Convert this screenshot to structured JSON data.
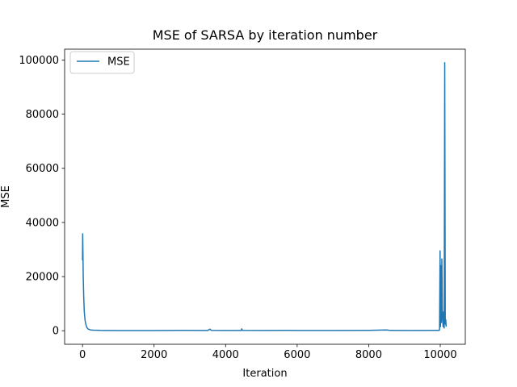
{
  "chart_data": {
    "type": "line",
    "title": "MSE of SARSA by iteration number",
    "xlabel": "Iteration",
    "ylabel": "MSE",
    "xlim": [
      -500,
      10700
    ],
    "ylim": [
      -5000,
      104000
    ],
    "xticks": [
      0,
      2000,
      4000,
      6000,
      8000,
      10000
    ],
    "yticks": [
      0,
      20000,
      40000,
      60000,
      80000,
      100000
    ],
    "xtick_labels": [
      "0",
      "2000",
      "4000",
      "6000",
      "8000",
      "10000"
    ],
    "ytick_labels": [
      "0",
      "20000",
      "40000",
      "60000",
      "80000",
      "100000"
    ],
    "grid": false,
    "legend_position": "top-left",
    "series": [
      {
        "name": "MSE",
        "color": "#1f77b4",
        "points": [
          [
            0,
            26000
          ],
          [
            5,
            35800
          ],
          [
            12,
            29000
          ],
          [
            20,
            20000
          ],
          [
            35,
            12000
          ],
          [
            50,
            7000
          ],
          [
            70,
            4000
          ],
          [
            90,
            2500
          ],
          [
            120,
            1200
          ],
          [
            160,
            600
          ],
          [
            220,
            300
          ],
          [
            300,
            200
          ],
          [
            500,
            120
          ],
          [
            1000,
            80
          ],
          [
            2000,
            80
          ],
          [
            2800,
            120
          ],
          [
            3500,
            100
          ],
          [
            3560,
            600
          ],
          [
            3600,
            150
          ],
          [
            4000,
            100
          ],
          [
            4440,
            100
          ],
          [
            4450,
            700
          ],
          [
            4470,
            150
          ],
          [
            5000,
            100
          ],
          [
            5700,
            150
          ],
          [
            6000,
            100
          ],
          [
            7000,
            100
          ],
          [
            8000,
            150
          ],
          [
            8500,
            300
          ],
          [
            8600,
            120
          ],
          [
            9000,
            100
          ],
          [
            9950,
            120
          ],
          [
            9980,
            200
          ],
          [
            9995,
            29500
          ],
          [
            10005,
            1500
          ],
          [
            10015,
            24000
          ],
          [
            10030,
            3000
          ],
          [
            10045,
            26500
          ],
          [
            10060,
            5000
          ],
          [
            10080,
            1500
          ],
          [
            10095,
            7000
          ],
          [
            10110,
            1000
          ],
          [
            10125,
            99000
          ],
          [
            10140,
            2500
          ],
          [
            10155,
            4000
          ],
          [
            10165,
            1500
          ]
        ]
      }
    ]
  }
}
